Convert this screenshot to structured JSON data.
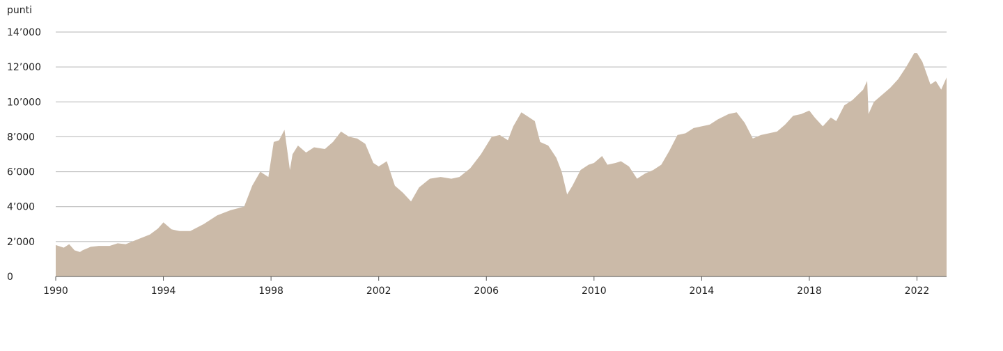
{
  "chart_data": {
    "type": "area",
    "unit_label": "punti",
    "xlim": [
      1990,
      2023.1
    ],
    "ylim": [
      0,
      14000
    ],
    "y_ticks": [
      0,
      2000,
      4000,
      6000,
      8000,
      10000,
      12000,
      14000
    ],
    "y_tick_labels": [
      "0",
      "2’000",
      "4’000",
      "6’000",
      "8’000",
      "10’000",
      "12’000",
      "14’000"
    ],
    "x_ticks": [
      1990,
      1994,
      1998,
      2002,
      2006,
      2010,
      2014,
      2018,
      2022
    ],
    "x_tick_labels": [
      "1990",
      "1994",
      "1998",
      "2002",
      "2006",
      "2010",
      "2014",
      "2018",
      "2022"
    ],
    "grid": "horizontal",
    "colors": {
      "area": "#cbbaa8",
      "grid": "#b5b5b5",
      "axis": "#555555"
    },
    "series": [
      {
        "x": [
          1990.0,
          1990.3,
          1990.5,
          1990.7,
          1990.9,
          1991.0,
          1991.3,
          1991.6,
          1992.0,
          1992.3,
          1992.6,
          1993.0,
          1993.5,
          1993.8,
          1994.0,
          1994.3,
          1994.6,
          1995.0,
          1995.5,
          1996.0,
          1996.5,
          1997.0,
          1997.3,
          1997.6,
          1997.9,
          1998.1,
          1998.3,
          1998.5,
          1998.7,
          1998.8,
          1999.0,
          1999.3,
          1999.6,
          2000.0,
          2000.3,
          2000.6,
          2000.9,
          2001.2,
          2001.5,
          2001.8,
          2002.0,
          2002.3,
          2002.6,
          2002.9,
          2003.2,
          2003.5,
          2003.9,
          2004.3,
          2004.7,
          2005.0,
          2005.4,
          2005.8,
          2006.2,
          2006.5,
          2006.8,
          2007.0,
          2007.3,
          2007.5,
          2007.8,
          2008.0,
          2008.3,
          2008.6,
          2008.8,
          2009.0,
          2009.2,
          2009.5,
          2009.8,
          2010.0,
          2010.3,
          2010.5,
          2010.8,
          2011.0,
          2011.3,
          2011.6,
          2011.9,
          2012.2,
          2012.5,
          2012.8,
          2013.1,
          2013.4,
          2013.7,
          2014.0,
          2014.3,
          2014.6,
          2015.0,
          2015.3,
          2015.6,
          2015.9,
          2016.2,
          2016.5,
          2016.8,
          2017.1,
          2017.4,
          2017.7,
          2018.0,
          2018.2,
          2018.5,
          2018.8,
          2019.0,
          2019.3,
          2019.6,
          2020.0,
          2020.15,
          2020.2,
          2020.4,
          2020.7,
          2021.0,
          2021.3,
          2021.6,
          2021.9,
          2022.0,
          2022.2,
          2022.5,
          2022.7,
          2022.9,
          2023.1
        ],
        "y": [
          1800,
          1650,
          1850,
          1500,
          1400,
          1500,
          1700,
          1750,
          1750,
          1900,
          1850,
          2100,
          2400,
          2750,
          3100,
          2700,
          2600,
          2600,
          3000,
          3500,
          3800,
          4000,
          5200,
          6000,
          5700,
          7700,
          7800,
          8400,
          6100,
          7000,
          7500,
          7100,
          7400,
          7300,
          7700,
          8300,
          8000,
          7900,
          7600,
          6500,
          6300,
          6600,
          5200,
          4800,
          4300,
          5100,
          5600,
          5700,
          5600,
          5700,
          6200,
          7000,
          8000,
          8100,
          7800,
          8600,
          9400,
          9200,
          8900,
          7700,
          7500,
          6800,
          6000,
          4700,
          5200,
          6100,
          6400,
          6500,
          6900,
          6400,
          6500,
          6600,
          6300,
          5600,
          5900,
          6100,
          6400,
          7200,
          8100,
          8200,
          8500,
          8600,
          8700,
          9000,
          9300,
          9400,
          8800,
          7900,
          8100,
          8200,
          8300,
          8700,
          9200,
          9300,
          9500,
          9100,
          8600,
          9100,
          8900,
          9800,
          10100,
          10700,
          11200,
          9300,
          10000,
          10400,
          10800,
          11300,
          12000,
          12800,
          12800,
          12300,
          11000,
          11200,
          10700,
          11400
        ]
      }
    ]
  }
}
